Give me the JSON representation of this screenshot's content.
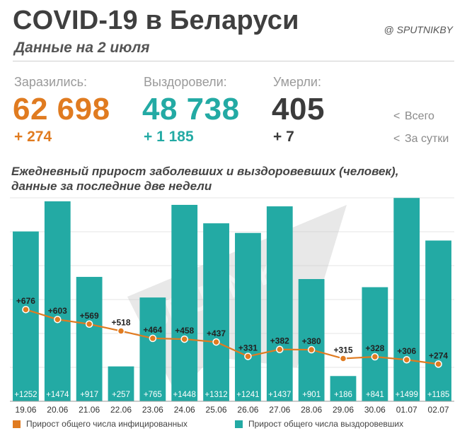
{
  "header": {
    "title": "COVID-19 в Беларуси",
    "subtitle": "Данные на 2 июля",
    "brand": "@ SPUTNIKBY"
  },
  "stats": {
    "infected": {
      "label": "Заразились:",
      "total": "62 698",
      "daily": "+ 274"
    },
    "recovered": {
      "label": "Выздоровели:",
      "total": "48 738",
      "daily": "+ 1 185"
    },
    "deaths": {
      "label": "Умерли:",
      "total": "405",
      "daily": "+ 7"
    },
    "legend_total": "Всего",
    "legend_daily": "За сутки",
    "chevron": "<"
  },
  "colors": {
    "infected": "#e07b20",
    "recovered": "#23aaa4",
    "deaths": "#3b3b3b"
  },
  "watermark": "SPUTNIK",
  "chart_data": {
    "type": "bar",
    "title": "Ежедневный прирост заболевших и выздоровевших (человек), данные за последние две недели",
    "categories": [
      "19.06",
      "20.06",
      "21.06",
      "22.06",
      "23.06",
      "24.06",
      "25.06",
      "26.06",
      "27.06",
      "28.06",
      "29.06",
      "30.06",
      "01.07",
      "02.07"
    ],
    "series": [
      {
        "name": "Прирост общего числа выздоровевших",
        "kind": "bar",
        "color": "#23aaa4",
        "values": [
          1252,
          1474,
          917,
          257,
          765,
          1448,
          1312,
          1241,
          1437,
          901,
          186,
          841,
          1499,
          1185
        ],
        "labels": [
          "+1252",
          "+1474",
          "+917",
          "+257",
          "+765",
          "+1448",
          "+1312",
          "+1241",
          "+1437",
          "+901",
          "+186",
          "+841",
          "+1499",
          "+1185"
        ]
      },
      {
        "name": "Прирост общего числа инфицированных",
        "kind": "line",
        "color": "#e07b20",
        "values": [
          676,
          603,
          569,
          518,
          464,
          458,
          437,
          331,
          382,
          380,
          315,
          328,
          306,
          274
        ],
        "labels": [
          "+676",
          "+603",
          "+569",
          "+518",
          "+464",
          "+458",
          "+437",
          "+331",
          "+382",
          "+380",
          "+315",
          "+328",
          "+306",
          "+274"
        ]
      }
    ],
    "ylim": [
      0,
      1500
    ],
    "grid": true,
    "legend": "bottom"
  }
}
